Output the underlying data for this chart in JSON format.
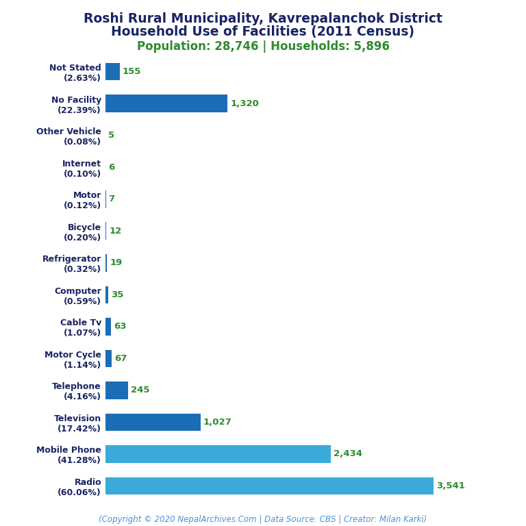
{
  "title_line1": "Roshi Rural Municipality, Kavrepalanchok District",
  "title_line2": "Household Use of Facilities (2011 Census)",
  "subtitle": "Population: 28,746 | Households: 5,896",
  "copyright": "(Copyright © 2020 NepalArchives.Com | Data Source: CBS | Creator: Milan Karki)",
  "categories": [
    "Not Stated\n(2.63%)",
    "No Facility\n(22.39%)",
    "Other Vehicle\n(0.08%)",
    "Internet\n(0.10%)",
    "Motor\n(0.12%)",
    "Bicycle\n(0.20%)",
    "Refrigerator\n(0.32%)",
    "Computer\n(0.59%)",
    "Cable Tv\n(1.07%)",
    "Motor Cycle\n(1.14%)",
    "Telephone\n(4.16%)",
    "Television\n(17.42%)",
    "Mobile Phone\n(41.28%)",
    "Radio\n(60.06%)"
  ],
  "values": [
    155,
    1320,
    5,
    6,
    7,
    12,
    19,
    35,
    63,
    67,
    245,
    1027,
    2434,
    3541
  ],
  "value_labels": [
    "155",
    "1,320",
    "5",
    "6",
    "7",
    "12",
    "19",
    "35",
    "63",
    "67",
    "245",
    "1,027",
    "2,434",
    "3,541"
  ],
  "bar_colors": [
    "#1b6db5",
    "#1b6db5",
    "#1b6db5",
    "#1b6db5",
    "#1b6db5",
    "#1b6db5",
    "#1b6db5",
    "#1b6db5",
    "#1b6db5",
    "#1b6db5",
    "#1b6db5",
    "#1b6db5",
    "#3aaad8",
    "#3aaad8"
  ],
  "title_color": "#1a2464",
  "subtitle_color": "#2e8b2e",
  "label_color": "#2e8b2e",
  "copyright_color": "#4a90d9",
  "background_color": "#ffffff",
  "title_fontsize": 13.5,
  "subtitle_fontsize": 12,
  "label_fontsize": 9.5,
  "tick_fontsize": 9,
  "copyright_fontsize": 8.5,
  "bar_height": 0.55,
  "xlim_max": 4200
}
